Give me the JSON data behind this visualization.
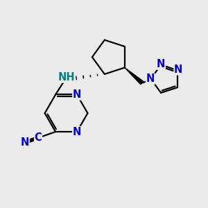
{
  "bg_color": "#ebebeb",
  "bond_color": "#000000",
  "N_color": "#0000cc",
  "C_color": "#000000",
  "NH_color": "#008080",
  "lw": 1.6,
  "fs": 10.5,
  "figsize": [
    3.0,
    3.0
  ],
  "dpi": 100,
  "xlim": [
    0,
    10
  ],
  "ylim": [
    0,
    10
  ]
}
